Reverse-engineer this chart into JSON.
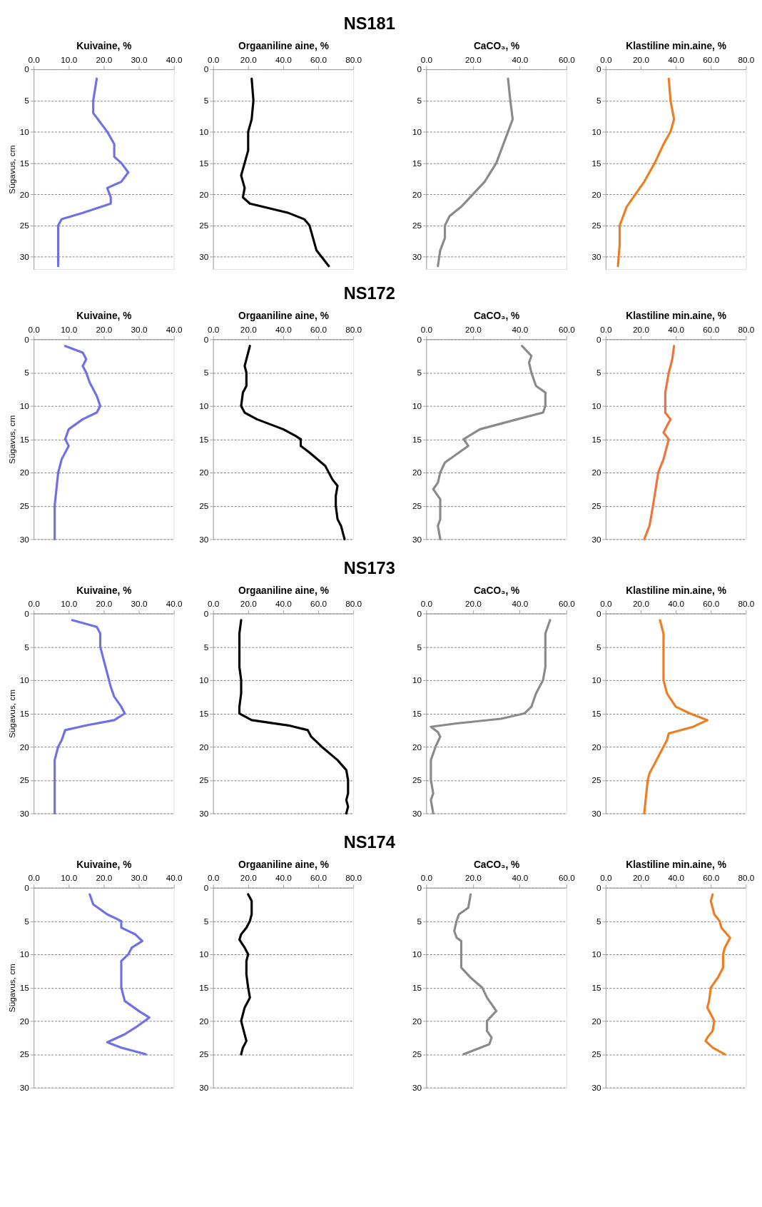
{
  "chart_data": [
    {
      "type": "line",
      "xlabel": "Kuivaine, %",
      "ylabel": "Sügavus, cm",
      "xlim": [
        0,
        40
      ],
      "xticks": [
        {
          "value": 0,
          "label": "0.0"
        },
        {
          "value": 10,
          "label": "10.0"
        },
        {
          "value": 20,
          "label": "20.0"
        },
        {
          "value": 30,
          "label": "30.0"
        },
        {
          "value": 40,
          "label": "40.0"
        }
      ],
      "ylim": [
        32,
        0
      ],
      "yticks": [
        0,
        5,
        10,
        15,
        20,
        25,
        30
      ],
      "grid": "y",
      "series": [
        {
          "color": "#7070e6",
          "x": [
            18,
            17,
            17,
            21,
            23,
            23,
            25,
            27,
            25,
            21,
            22,
            22,
            14,
            8,
            7,
            7,
            7,
            7
          ],
          "values": [
            1.5,
            5,
            7,
            10,
            12,
            14,
            15,
            16.5,
            18,
            19,
            20.5,
            21.5,
            23,
            24,
            25,
            27,
            30,
            31.5
          ]
        }
      ]
    },
    {
      "type": "line",
      "title": "NS181",
      "xlabel": "Orgaaniline aine, %",
      "xlim": [
        0,
        80
      ],
      "xticks": [
        {
          "value": 0,
          "label": "0.0"
        },
        {
          "value": 20,
          "label": "20.0"
        },
        {
          "value": 40,
          "label": "40.0"
        },
        {
          "value": 60,
          "label": "60.0"
        },
        {
          "value": 80,
          "label": "80.0"
        }
      ],
      "ylim": [
        32,
        0
      ],
      "yticks": [
        0,
        5,
        10,
        15,
        20,
        25,
        30
      ],
      "grid": "y",
      "series": [
        {
          "color": "#000000",
          "x": [
            22,
            23,
            22,
            20,
            20,
            18,
            16,
            18,
            17,
            21,
            43,
            52,
            55,
            57,
            59,
            66
          ],
          "values": [
            1.5,
            5,
            8,
            10,
            13,
            15,
            17,
            19,
            20.5,
            21.5,
            23,
            24,
            25,
            27,
            29,
            31.5
          ]
        }
      ]
    },
    {
      "type": "line",
      "xlabel": "CaCO₃, %",
      "xlim": [
        0,
        60
      ],
      "xticks": [
        {
          "value": 0,
          "label": "0.0"
        },
        {
          "value": 20,
          "label": "20.0"
        },
        {
          "value": 40,
          "label": "40.0"
        },
        {
          "value": 60,
          "label": "60.0"
        }
      ],
      "ylim": [
        32,
        0
      ],
      "yticks": [
        0,
        5,
        10,
        15,
        20,
        25,
        30
      ],
      "grid": "y",
      "series": [
        {
          "color": "#8a8a8a",
          "x": [
            35,
            36,
            37,
            35,
            33,
            30,
            25,
            20,
            15,
            10,
            8,
            8,
            6,
            5
          ],
          "values": [
            1.5,
            5,
            8,
            10,
            12,
            15,
            18,
            20,
            22,
            23.5,
            25,
            27,
            29,
            31.5
          ]
        }
      ]
    },
    {
      "type": "line",
      "xlabel": "Klastiline min.aine, %",
      "xlim": [
        0,
        80
      ],
      "xticks": [
        {
          "value": 0,
          "label": "0.0"
        },
        {
          "value": 20,
          "label": "20.0"
        },
        {
          "value": 40,
          "label": "40.0"
        },
        {
          "value": 60,
          "label": "60.0"
        },
        {
          "value": 80,
          "label": "80.0"
        }
      ],
      "ylim": [
        32,
        0
      ],
      "yticks": [
        0,
        5,
        10,
        15,
        20,
        25,
        30
      ],
      "grid": "y",
      "series": [
        {
          "color": "#ee7d1f",
          "x": [
            36,
            37,
            39,
            37,
            33,
            28,
            22,
            17,
            12,
            10,
            8,
            8,
            7
          ],
          "values": [
            1.5,
            5,
            8,
            10,
            12,
            15,
            18,
            20,
            22,
            23.5,
            25,
            28,
            31.5
          ]
        }
      ]
    },
    {
      "type": "line",
      "xlabel": "Kuivaine, %",
      "ylabel": "Sügavus, cm",
      "xlim": [
        0,
        40
      ],
      "xticks": [
        {
          "value": 0,
          "label": "0.0"
        },
        {
          "value": 10,
          "label": "10.0"
        },
        {
          "value": 20,
          "label": "20.0"
        },
        {
          "value": 30,
          "label": "30.0"
        },
        {
          "value": 40,
          "label": "40.0"
        }
      ],
      "ylim": [
        30,
        0
      ],
      "yticks": [
        0,
        5,
        10,
        15,
        20,
        25,
        30
      ],
      "grid": "y",
      "series": [
        {
          "color": "#7070e6",
          "x": [
            9,
            14,
            15,
            14,
            15,
            16,
            17,
            18,
            19,
            18,
            14,
            10,
            9,
            10,
            8,
            7,
            6,
            6
          ],
          "values": [
            1,
            2,
            3,
            4,
            5,
            6.5,
            7.5,
            8.5,
            10,
            11,
            12,
            13.5,
            15,
            16,
            18,
            20,
            25,
            30
          ]
        }
      ]
    },
    {
      "type": "line",
      "xlabel": "Orgaaniline aine, %",
      "xlim": [
        0,
        80
      ],
      "xticks": [
        {
          "value": 0,
          "label": "0.0"
        },
        {
          "value": 20,
          "label": "20.0"
        },
        {
          "value": 40,
          "label": "40.0"
        },
        {
          "value": 60,
          "label": "60.0"
        },
        {
          "value": 80,
          "label": "80.0"
        }
      ],
      "ylim": [
        30,
        0
      ],
      "yticks": [
        0,
        5,
        10,
        15,
        20,
        25,
        30
      ],
      "grid": "y",
      "title": "NS172",
      "series": [
        {
          "color": "#000000",
          "x": [
            21,
            19,
            18,
            19,
            19,
            17,
            16,
            18,
            25,
            40,
            47,
            50,
            50,
            55,
            64,
            68,
            71,
            70,
            70,
            71,
            73,
            75
          ],
          "values": [
            1,
            3,
            4,
            5,
            7,
            8,
            10,
            11,
            12,
            13.5,
            14.5,
            15,
            16,
            17,
            19,
            21,
            22,
            23.5,
            25,
            27,
            28,
            30
          ]
        }
      ]
    },
    {
      "type": "line",
      "xlabel": "CaCO₃, %",
      "xlim": [
        0,
        60
      ],
      "xticks": [
        {
          "value": 0,
          "label": "0.0"
        },
        {
          "value": 20,
          "label": "20.0"
        },
        {
          "value": 40,
          "label": "40.0"
        },
        {
          "value": 60,
          "label": "60.0"
        }
      ],
      "ylim": [
        30,
        0
      ],
      "yticks": [
        0,
        5,
        10,
        15,
        20,
        25,
        30
      ],
      "grid": "y",
      "series": [
        {
          "color": "#8a8a8a",
          "x": [
            41,
            45,
            44,
            45,
            47,
            51,
            51,
            50,
            39,
            23,
            16,
            18,
            14,
            8,
            6,
            5,
            3,
            6,
            6,
            6,
            5,
            6
          ],
          "values": [
            1,
            2.5,
            3.5,
            5,
            7,
            8,
            10,
            11,
            12,
            13.5,
            15,
            16,
            17,
            18.5,
            20,
            21.5,
            22.5,
            24,
            25,
            27,
            28,
            30
          ]
        }
      ]
    },
    {
      "type": "line",
      "xlabel": "Klastiline min.aine, %",
      "xlim": [
        0,
        80
      ],
      "xticks": [
        {
          "value": 0,
          "label": "0.0"
        },
        {
          "value": 20,
          "label": "20.0"
        },
        {
          "value": 40,
          "label": "40.0"
        },
        {
          "value": 60,
          "label": "60.0"
        },
        {
          "value": 80,
          "label": "80.0"
        }
      ],
      "ylim": [
        30,
        0
      ],
      "yticks": [
        0,
        5,
        10,
        15,
        20,
        25,
        30
      ],
      "grid": "y",
      "series": [
        {
          "color": "#f0743a",
          "x": [
            39,
            38,
            36,
            34,
            34,
            34,
            37,
            34,
            33,
            36,
            33,
            30,
            27,
            25,
            22
          ],
          "values": [
            1,
            3,
            5,
            8,
            10,
            11,
            12,
            13.5,
            14,
            15,
            18,
            20,
            25,
            28,
            30
          ]
        }
      ]
    },
    {
      "type": "line",
      "xlabel": "Kuivaine, %",
      "ylabel": "Sügavus, cm",
      "xlim": [
        0,
        40
      ],
      "xticks": [
        {
          "value": 0,
          "label": "0.0"
        },
        {
          "value": 10,
          "label": "10.0"
        },
        {
          "value": 20,
          "label": "20.0"
        },
        {
          "value": 30,
          "label": "30.0"
        },
        {
          "value": 40,
          "label": "40.0"
        }
      ],
      "ylim": [
        30,
        0
      ],
      "yticks": [
        0,
        5,
        10,
        15,
        20,
        25,
        30
      ],
      "grid": "y",
      "series": [
        {
          "color": "#7070e6",
          "x": [
            11,
            18,
            19,
            19,
            20,
            21,
            22,
            23,
            25,
            26,
            23,
            15,
            9,
            8,
            7,
            6,
            6,
            6
          ],
          "values": [
            1,
            2,
            3,
            5,
            7,
            9,
            11,
            12.5,
            14,
            15,
            16,
            16.8,
            17.5,
            19,
            20,
            22,
            25,
            30
          ]
        }
      ]
    },
    {
      "type": "line",
      "xlabel": "Orgaaniline aine, %",
      "xlim": [
        0,
        80
      ],
      "xticks": [
        {
          "value": 0,
          "label": "0.0"
        },
        {
          "value": 20,
          "label": "20.0"
        },
        {
          "value": 40,
          "label": "40.0"
        },
        {
          "value": 60,
          "label": "60.0"
        },
        {
          "value": 80,
          "label": "80.0"
        }
      ],
      "ylim": [
        30,
        0
      ],
      "yticks": [
        0,
        5,
        10,
        15,
        20,
        25,
        30
      ],
      "grid": "y",
      "title": "NS173",
      "series": [
        {
          "color": "#000000",
          "x": [
            16,
            15,
            15,
            15,
            16,
            16,
            15,
            15,
            22,
            43,
            54,
            56,
            62,
            71,
            76,
            77,
            77,
            76,
            77,
            76
          ],
          "values": [
            1,
            3,
            5,
            8,
            10,
            12,
            14,
            15,
            16,
            16.8,
            17.5,
            18.5,
            20,
            22,
            23.5,
            25,
            27,
            28,
            29,
            30
          ]
        }
      ]
    },
    {
      "type": "line",
      "xlabel": "CaCO₃, %",
      "xlim": [
        0,
        60
      ],
      "xticks": [
        {
          "value": 0,
          "label": "0.0"
        },
        {
          "value": 20,
          "label": "20.0"
        },
        {
          "value": 40,
          "label": "40.0"
        },
        {
          "value": 60,
          "label": "60.0"
        }
      ],
      "ylim": [
        30,
        0
      ],
      "yticks": [
        0,
        5,
        10,
        15,
        20,
        25,
        30
      ],
      "grid": "y",
      "series": [
        {
          "color": "#8a8a8a",
          "x": [
            53,
            51,
            51,
            51,
            50,
            47,
            45,
            42,
            32,
            13,
            2,
            5,
            6,
            4,
            2,
            2,
            3,
            2,
            3
          ],
          "values": [
            1,
            3,
            5,
            8,
            10,
            12,
            14,
            15,
            15.8,
            16.5,
            17,
            17.8,
            18.5,
            20,
            22,
            25,
            27,
            28,
            30
          ]
        }
      ]
    },
    {
      "type": "line",
      "xlabel": "Klastiline min.aine, %",
      "xlim": [
        0,
        80
      ],
      "xticks": [
        {
          "value": 0,
          "label": "0.0"
        },
        {
          "value": 20,
          "label": "20.0"
        },
        {
          "value": 40,
          "label": "40.0"
        },
        {
          "value": 60,
          "label": "60.0"
        },
        {
          "value": 80,
          "label": "80.0"
        }
      ],
      "ylim": [
        30,
        0
      ],
      "yticks": [
        0,
        5,
        10,
        15,
        20,
        25,
        30
      ],
      "grid": "y",
      "series": [
        {
          "color": "#ee7d1f",
          "x": [
            31,
            33,
            33,
            33,
            35,
            40,
            48,
            58,
            50,
            36,
            35,
            33,
            29,
            25,
            24,
            22
          ],
          "values": [
            1,
            3,
            5,
            10,
            12,
            14,
            15,
            16,
            17,
            18,
            19,
            20,
            22,
            24,
            25,
            30
          ]
        }
      ]
    },
    {
      "type": "line",
      "xlabel": "Kuivaine, %",
      "ylabel": "Sügavus, cm",
      "xlim": [
        0,
        40
      ],
      "xticks": [
        {
          "value": 0,
          "label": "0.0"
        },
        {
          "value": 10,
          "label": "10.0"
        },
        {
          "value": 20,
          "label": "20.0"
        },
        {
          "value": 30,
          "label": "30.0"
        },
        {
          "value": 40,
          "label": "40.0"
        }
      ],
      "ylim": [
        30,
        0
      ],
      "yticks": [
        0,
        5,
        10,
        15,
        20,
        25,
        30
      ],
      "grid": "y",
      "series": [
        {
          "color": "#7070e6",
          "x": [
            16,
            17,
            21,
            25,
            25,
            29,
            31,
            28,
            27,
            25,
            25,
            25,
            26,
            30,
            33,
            29,
            26,
            21,
            25,
            32
          ],
          "values": [
            1,
            2.5,
            4,
            5,
            6,
            7,
            8,
            9,
            10,
            11,
            13,
            15,
            17,
            18.5,
            19.5,
            21,
            22,
            23.2,
            24,
            25
          ]
        }
      ]
    },
    {
      "type": "line",
      "xlabel": "Orgaaniline aine, %",
      "xlim": [
        0,
        80
      ],
      "xticks": [
        {
          "value": 0,
          "label": "0.0"
        },
        {
          "value": 20,
          "label": "20.0"
        },
        {
          "value": 40,
          "label": "40.0"
        },
        {
          "value": 60,
          "label": "60.0"
        },
        {
          "value": 80,
          "label": "80.0"
        }
      ],
      "ylim": [
        30,
        0
      ],
      "yticks": [
        0,
        5,
        10,
        15,
        20,
        25,
        30
      ],
      "grid": "y",
      "title": "NS174",
      "series": [
        {
          "color": "#000000",
          "x": [
            20,
            22,
            22,
            21,
            19,
            16,
            15,
            18,
            20,
            19,
            19,
            20,
            21,
            18,
            16,
            18,
            19,
            17,
            16
          ],
          "values": [
            1,
            2,
            4,
            5,
            6,
            7,
            7.8,
            9,
            10,
            11,
            13,
            15,
            16.5,
            18,
            20,
            22,
            23,
            24,
            25
          ]
        }
      ]
    },
    {
      "type": "line",
      "xlabel": "CaCO₃, %",
      "xlim": [
        0,
        60
      ],
      "xticks": [
        {
          "value": 0,
          "label": "0.0"
        },
        {
          "value": 20,
          "label": "20.0"
        },
        {
          "value": 40,
          "label": "40.0"
        },
        {
          "value": 60,
          "label": "60.0"
        }
      ],
      "ylim": [
        30,
        0
      ],
      "yticks": [
        0,
        5,
        10,
        15,
        20,
        25,
        30
      ],
      "grid": "y",
      "series": [
        {
          "color": "#8a8a8a",
          "x": [
            19,
            18,
            14,
            13,
            12,
            13,
            15,
            15,
            15,
            19,
            24,
            26,
            30,
            26,
            26,
            28,
            27,
            16
          ],
          "values": [
            1,
            3,
            4,
            5,
            6.5,
            7.5,
            8,
            10,
            12,
            13.5,
            15,
            16.5,
            18.5,
            20,
            21.5,
            22.5,
            23.5,
            25
          ]
        }
      ]
    },
    {
      "type": "line",
      "xlabel": "Klastiline min.aine, %",
      "xlim": [
        0,
        80
      ],
      "xticks": [
        {
          "value": 0,
          "label": "0.0"
        },
        {
          "value": 20,
          "label": "20.0"
        },
        {
          "value": 40,
          "label": "40.0"
        },
        {
          "value": 60,
          "label": "60.0"
        },
        {
          "value": 80,
          "label": "80.0"
        }
      ],
      "ylim": [
        30,
        0
      ],
      "yticks": [
        0,
        5,
        10,
        15,
        20,
        25,
        30
      ],
      "grid": "y",
      "series": [
        {
          "color": "#ee7d1f",
          "x": [
            61,
            60,
            62,
            65,
            66,
            71,
            68,
            67,
            67,
            64,
            60,
            59,
            58,
            60,
            62,
            61,
            58,
            57,
            61,
            68
          ],
          "values": [
            1,
            2,
            4,
            5,
            6,
            7.5,
            9,
            10,
            12,
            13.5,
            15,
            17,
            18,
            19,
            20,
            21.5,
            22.5,
            23,
            24,
            25
          ]
        }
      ]
    }
  ]
}
